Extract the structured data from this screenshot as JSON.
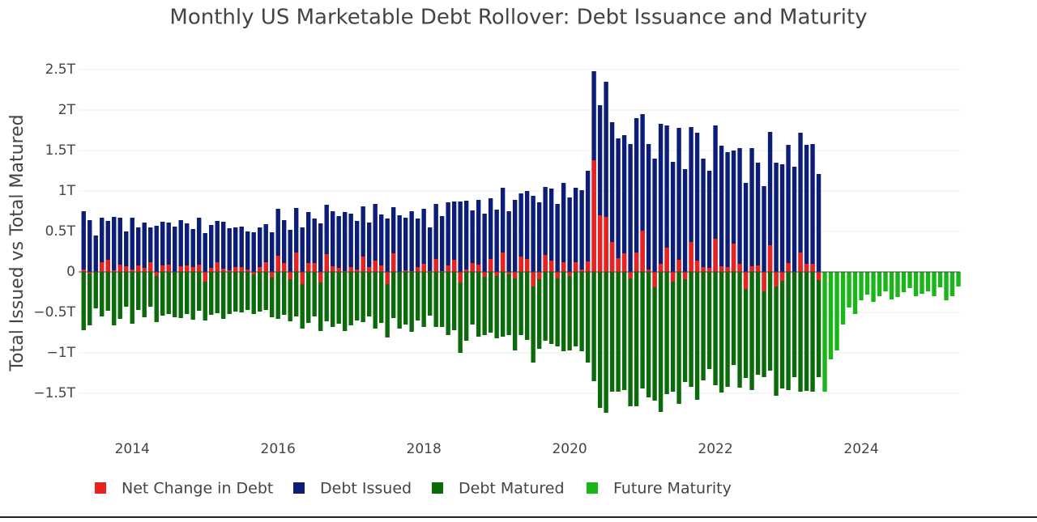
{
  "chart_data": {
    "type": "bar",
    "title": "Monthly US Marketable Debt Rollover: Debt Issuance and Maturity",
    "y_label": "Total Issued vs Total Matured",
    "x": [
      "2013-05",
      "2013-06",
      "2013-07",
      "2013-08",
      "2013-09",
      "2013-10",
      "2013-11",
      "2013-12",
      "2014-01",
      "2014-02",
      "2014-03",
      "2014-04",
      "2014-05",
      "2014-06",
      "2014-07",
      "2014-08",
      "2014-09",
      "2014-10",
      "2014-11",
      "2014-12",
      "2015-01",
      "2015-02",
      "2015-03",
      "2015-04",
      "2015-05",
      "2015-06",
      "2015-07",
      "2015-08",
      "2015-09",
      "2015-10",
      "2015-11",
      "2015-12",
      "2016-01",
      "2016-02",
      "2016-03",
      "2016-04",
      "2016-05",
      "2016-06",
      "2016-07",
      "2016-08",
      "2016-09",
      "2016-10",
      "2016-11",
      "2016-12",
      "2017-01",
      "2017-02",
      "2017-03",
      "2017-04",
      "2017-05",
      "2017-06",
      "2017-07",
      "2017-08",
      "2017-09",
      "2017-10",
      "2017-11",
      "2017-12",
      "2018-01",
      "2018-02",
      "2018-03",
      "2018-04",
      "2018-05",
      "2018-06",
      "2018-07",
      "2018-08",
      "2018-09",
      "2018-10",
      "2018-11",
      "2018-12",
      "2019-01",
      "2019-02",
      "2019-03",
      "2019-04",
      "2019-05",
      "2019-06",
      "2019-07",
      "2019-08",
      "2019-09",
      "2019-10",
      "2019-11",
      "2019-12",
      "2020-01",
      "2020-02",
      "2020-03",
      "2020-04",
      "2020-05",
      "2020-06",
      "2020-07",
      "2020-08",
      "2020-09",
      "2020-10",
      "2020-11",
      "2020-12",
      "2021-01",
      "2021-02",
      "2021-03",
      "2021-04",
      "2021-05",
      "2021-06",
      "2021-07",
      "2021-08",
      "2021-09",
      "2021-10",
      "2021-11",
      "2021-12",
      "2022-01",
      "2022-02",
      "2022-03",
      "2022-04",
      "2022-05",
      "2022-06",
      "2022-07",
      "2022-08",
      "2022-09",
      "2022-10",
      "2022-11",
      "2022-12",
      "2023-01",
      "2023-02",
      "2023-03",
      "2023-04",
      "2023-05",
      "2023-06"
    ],
    "series": [
      {
        "name": "Net Change in Debt",
        "color": "#e8221f",
        "values": [
          0.03,
          -0.02,
          0.0,
          0.12,
          0.15,
          0.02,
          0.09,
          0.07,
          0.03,
          0.08,
          0.05,
          0.12,
          -0.05,
          0.08,
          0.09,
          0.0,
          0.07,
          0.08,
          0.06,
          0.09,
          -0.12,
          0.05,
          0.12,
          0.04,
          0.02,
          0.06,
          0.06,
          0.03,
          -0.03,
          0.06,
          0.12,
          -0.07,
          0.2,
          0.11,
          -0.09,
          0.24,
          -0.15,
          0.11,
          0.11,
          -0.13,
          0.22,
          0.07,
          0.05,
          0.01,
          0.06,
          0.03,
          0.19,
          0.06,
          0.14,
          0.08,
          -0.15,
          0.23,
          0.0,
          0.02,
          0.01,
          0.06,
          0.1,
          0.01,
          0.16,
          0.01,
          0.08,
          0.15,
          -0.13,
          0.03,
          0.11,
          0.09,
          -0.06,
          0.16,
          -0.05,
          0.24,
          -0.03,
          -0.08,
          0.19,
          0.16,
          -0.18,
          -0.09,
          0.21,
          0.14,
          -0.08,
          0.12,
          -0.05,
          0.12,
          0.03,
          0.13,
          1.38,
          0.7,
          0.68,
          0.37,
          0.17,
          0.23,
          -0.08,
          0.24,
          0.51,
          0.03,
          -0.19,
          0.1,
          0.3,
          -0.12,
          0.15,
          -0.09,
          0.37,
          0.14,
          0.06,
          0.05,
          0.41,
          0.07,
          0.06,
          0.35,
          0.1,
          -0.21,
          0.07,
          0.08,
          -0.24,
          0.33,
          -0.18,
          -0.11,
          0.11,
          0.0,
          0.24,
          0.1,
          0.1,
          -0.1
        ]
      },
      {
        "name": "Debt Issued",
        "color": "#0c1d78",
        "values": [
          0.75,
          0.64,
          0.45,
          0.67,
          0.63,
          0.68,
          0.67,
          0.5,
          0.67,
          0.55,
          0.61,
          0.55,
          0.57,
          0.62,
          0.61,
          0.56,
          0.64,
          0.6,
          0.53,
          0.67,
          0.48,
          0.58,
          0.63,
          0.62,
          0.54,
          0.55,
          0.56,
          0.5,
          0.49,
          0.55,
          0.59,
          0.49,
          0.78,
          0.64,
          0.52,
          0.79,
          0.55,
          0.74,
          0.66,
          0.6,
          0.83,
          0.75,
          0.69,
          0.74,
          0.72,
          0.63,
          0.81,
          0.61,
          0.84,
          0.71,
          0.66,
          0.8,
          0.7,
          0.67,
          0.75,
          0.66,
          0.78,
          0.55,
          0.84,
          0.69,
          0.86,
          0.87,
          0.87,
          0.88,
          0.76,
          0.89,
          0.72,
          0.91,
          0.77,
          1.04,
          0.75,
          0.89,
          0.97,
          1.0,
          0.94,
          0.86,
          1.05,
          1.03,
          0.84,
          1.1,
          0.92,
          1.04,
          1.01,
          1.25,
          2.48,
          2.06,
          2.35,
          1.85,
          1.65,
          1.69,
          1.58,
          1.9,
          1.95,
          1.58,
          1.4,
          1.83,
          1.81,
          1.36,
          1.78,
          1.27,
          1.79,
          1.72,
          1.4,
          1.25,
          1.81,
          1.56,
          1.48,
          1.5,
          1.53,
          1.1,
          1.53,
          1.35,
          1.06,
          1.73,
          1.35,
          1.33,
          1.57,
          1.3,
          1.72,
          1.57,
          1.58,
          1.21
        ]
      },
      {
        "name": "Debt Matured",
        "color": "#0b6b0b",
        "values": [
          -0.72,
          -0.66,
          -0.45,
          -0.55,
          -0.48,
          -0.66,
          -0.58,
          -0.43,
          -0.64,
          -0.47,
          -0.56,
          -0.43,
          -0.62,
          -0.54,
          -0.52,
          -0.56,
          -0.57,
          -0.52,
          -0.59,
          -0.48,
          -0.6,
          -0.53,
          -0.51,
          -0.58,
          -0.52,
          -0.49,
          -0.5,
          -0.47,
          -0.52,
          -0.49,
          -0.47,
          -0.56,
          -0.58,
          -0.53,
          -0.61,
          -0.55,
          -0.7,
          -0.63,
          -0.55,
          -0.73,
          -0.61,
          -0.68,
          -0.64,
          -0.73,
          -0.66,
          -0.6,
          -0.62,
          -0.55,
          -0.7,
          -0.63,
          -0.81,
          -0.57,
          -0.7,
          -0.65,
          -0.74,
          -0.6,
          -0.68,
          -0.54,
          -0.68,
          -0.68,
          -0.78,
          -0.72,
          -1.0,
          -0.85,
          -0.65,
          -0.8,
          -0.78,
          -0.75,
          -0.82,
          -0.8,
          -0.78,
          -0.97,
          -0.78,
          -0.84,
          -1.12,
          -0.95,
          -0.85,
          -0.89,
          -0.92,
          -0.98,
          -0.97,
          -0.92,
          -0.98,
          -1.12,
          -1.35,
          -1.68,
          -1.74,
          -1.48,
          -1.48,
          -1.46,
          -1.66,
          -1.66,
          -1.44,
          -1.55,
          -1.59,
          -1.73,
          -1.51,
          -1.48,
          -1.63,
          -1.36,
          -1.42,
          -1.58,
          -1.34,
          -1.2,
          -1.4,
          -1.49,
          -1.42,
          -1.15,
          -1.43,
          -1.31,
          -1.46,
          -1.27,
          -1.3,
          -1.22,
          -1.53,
          -1.44,
          -1.46,
          -1.3,
          -1.48,
          -1.47,
          -1.48,
          -1.3
        ]
      },
      {
        "name": "Future Maturity",
        "color": "#19b519",
        "x": [
          "2023-07",
          "2023-08",
          "2023-09",
          "2023-10",
          "2023-11",
          "2023-12",
          "2024-01",
          "2024-02",
          "2024-03",
          "2024-04",
          "2024-05",
          "2024-06",
          "2024-07",
          "2024-08",
          "2024-09",
          "2024-10",
          "2024-11",
          "2024-12",
          "2025-01",
          "2025-02",
          "2025-03",
          "2025-04",
          "2025-05"
        ],
        "values": [
          -1.48,
          -1.08,
          -0.97,
          -0.65,
          -0.44,
          -0.52,
          -0.35,
          -0.28,
          -0.37,
          -0.3,
          -0.24,
          -0.34,
          -0.31,
          -0.25,
          -0.2,
          -0.3,
          -0.27,
          -0.24,
          -0.3,
          -0.19,
          -0.35,
          -0.3,
          -0.18
        ]
      }
    ],
    "xlim": [
      "2013-04-06",
      "2025-05-09"
    ],
    "xticks": [
      "2014",
      "2016",
      "2018",
      "2020",
      "2022",
      "2024"
    ],
    "ylim": [
      -1.99,
      2.74
    ],
    "yticks": [
      {
        "value": 2.5,
        "label": "2.5T"
      },
      {
        "value": 2,
        "label": "2T"
      },
      {
        "value": 1.5,
        "label": "1.5T"
      },
      {
        "value": 1,
        "label": "1T"
      },
      {
        "value": 0.5,
        "label": "0.5T"
      },
      0,
      {
        "value": -0.5,
        "label": "−0.5T"
      },
      {
        "value": -1,
        "label": "−1T"
      },
      {
        "value": -1.5,
        "label": "−1.5T"
      }
    ],
    "grid": true,
    "legend": "bottom"
  }
}
